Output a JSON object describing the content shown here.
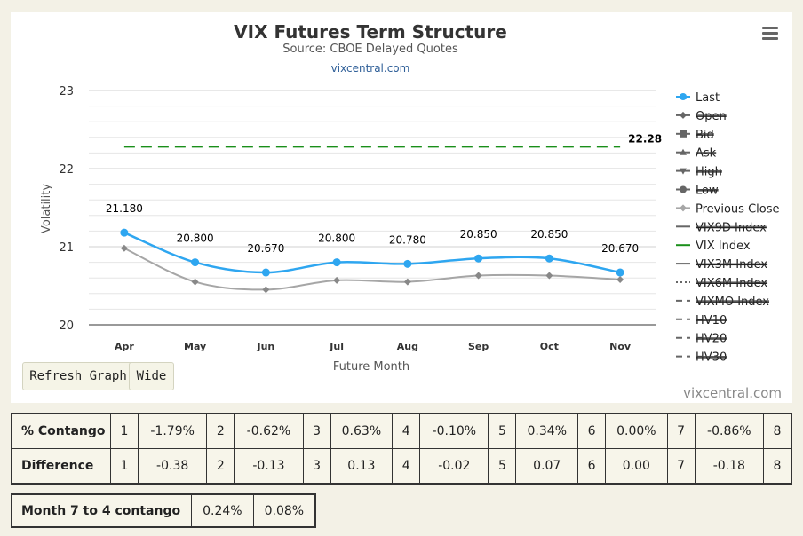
{
  "chart_data": {
    "type": "line",
    "title": "VIX Futures Term Structure",
    "subtitle": "Source: CBOE Delayed Quotes",
    "link": "vixcentral.com",
    "xlabel": "Future Month",
    "ylabel": "Volatility",
    "categories": [
      "Apr",
      "May",
      "Jun",
      "Jul",
      "Aug",
      "Sep",
      "Oct",
      "Nov"
    ],
    "ylim": [
      20,
      23
    ],
    "yticks": [
      20,
      21,
      22,
      23
    ],
    "grid": true,
    "legend_position": "right",
    "series": [
      {
        "name": "Last",
        "values": [
          21.18,
          20.8,
          20.67,
          20.8,
          20.78,
          20.85,
          20.85,
          20.67
        ],
        "labels": [
          "21.180",
          "20.800",
          "20.670",
          "20.800",
          "20.780",
          "20.850",
          "20.850",
          "20.670"
        ],
        "color": "#2ea6f0",
        "visible": true
      },
      {
        "name": "Previous Close",
        "values": [
          20.98,
          20.55,
          20.45,
          20.57,
          20.55,
          20.63,
          20.63,
          20.58
        ],
        "color": "#a6a6a6",
        "visible": true
      },
      {
        "name": "VIX Index",
        "value": 22.28,
        "label": "22.28",
        "color": "#1a8f1a",
        "visible": true
      }
    ],
    "legend": [
      {
        "name": "Last",
        "symbol": "circle",
        "line": "solid",
        "color": "#2ea6f0",
        "hidden": false
      },
      {
        "name": "Open",
        "symbol": "diamond",
        "line": "solid",
        "color": "#555555",
        "hidden": true
      },
      {
        "name": "Bid",
        "symbol": "square",
        "line": "solid",
        "color": "#555555",
        "hidden": true
      },
      {
        "name": "Ask",
        "symbol": "triangle",
        "line": "solid",
        "color": "#555555",
        "hidden": true
      },
      {
        "name": "High",
        "symbol": "triangle-down",
        "line": "solid",
        "color": "#555555",
        "hidden": true
      },
      {
        "name": "Low",
        "symbol": "circle",
        "line": "solid",
        "color": "#555555",
        "hidden": true
      },
      {
        "name": "Previous Close",
        "symbol": "diamond",
        "line": "solid",
        "color": "#a6a6a6",
        "hidden": false
      },
      {
        "name": "VIX9D Index",
        "symbol": "none",
        "line": "solid",
        "color": "#555555",
        "hidden": true
      },
      {
        "name": "VIX Index",
        "symbol": "none",
        "line": "solid",
        "color": "#1a8f1a",
        "hidden": false
      },
      {
        "name": "VIX3M Index",
        "symbol": "none",
        "line": "solid",
        "color": "#555555",
        "hidden": true
      },
      {
        "name": "VIX6M Index",
        "symbol": "none",
        "line": "dotted",
        "color": "#555555",
        "hidden": true
      },
      {
        "name": "VIXMO Index",
        "symbol": "none",
        "line": "dashed",
        "color": "#555555",
        "hidden": true
      },
      {
        "name": "HV10",
        "symbol": "none",
        "line": "dashed",
        "color": "#555555",
        "hidden": true
      },
      {
        "name": "HV20",
        "symbol": "none",
        "line": "dashed",
        "color": "#555555",
        "hidden": true
      },
      {
        "name": "HV30",
        "symbol": "none",
        "line": "dashed",
        "color": "#555555",
        "hidden": true
      }
    ]
  },
  "menu_icon": "hamburger-menu-icon",
  "buttons": {
    "refresh": "Refresh Graph",
    "wide": "Wide"
  },
  "credit": "vixcentral.com",
  "contango_table": {
    "rows": [
      {
        "header": "% Contango",
        "cells": [
          [
            "1",
            "-1.79%"
          ],
          [
            "2",
            "-0.62%"
          ],
          [
            "3",
            "0.63%"
          ],
          [
            "4",
            "-0.10%"
          ],
          [
            "5",
            "0.34%"
          ],
          [
            "6",
            "0.00%"
          ],
          [
            "7",
            "-0.86%"
          ]
        ],
        "last": "8"
      },
      {
        "header": "Difference",
        "cells": [
          [
            "1",
            "-0.38"
          ],
          [
            "2",
            "-0.13"
          ],
          [
            "3",
            "0.13"
          ],
          [
            "4",
            "-0.02"
          ],
          [
            "5",
            "0.07"
          ],
          [
            "6",
            "0.00"
          ],
          [
            "7",
            "-0.18"
          ]
        ],
        "last": "8"
      }
    ]
  },
  "month74": {
    "label": "Month 7 to 4 contango",
    "values": [
      "0.24%",
      "0.08%"
    ]
  }
}
